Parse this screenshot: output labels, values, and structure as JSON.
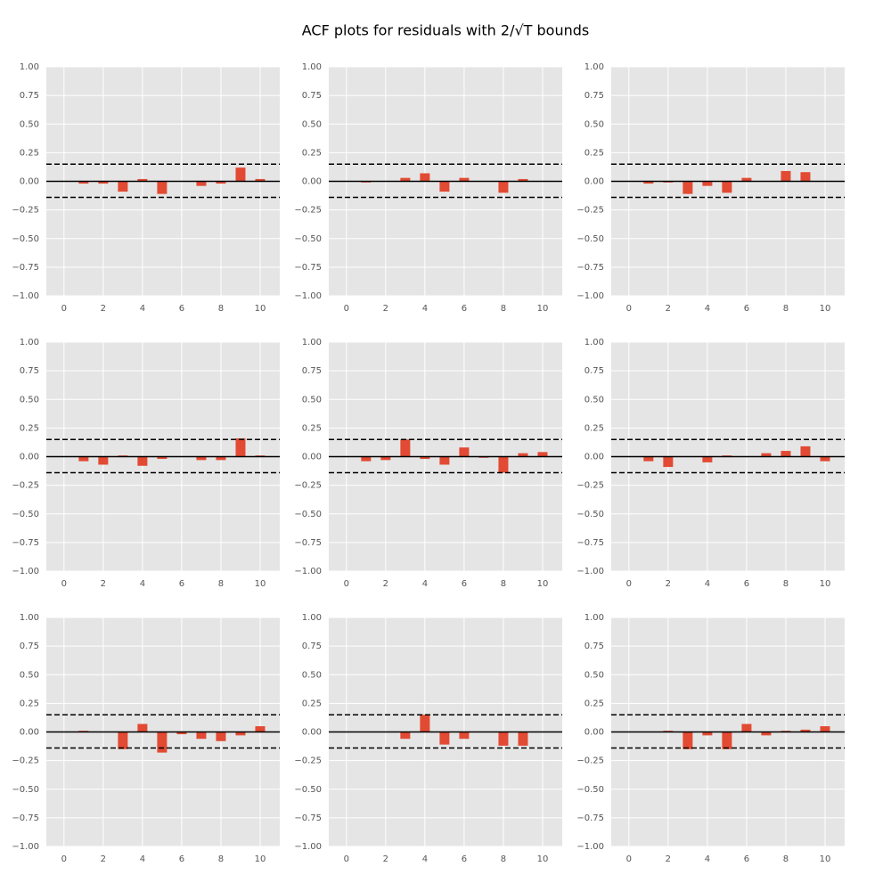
{
  "title": "ACF plots for residuals with 2/√T bounds",
  "chart_data": [
    {
      "type": "bar",
      "color": "#e24a33",
      "grid": true,
      "x": [
        1,
        2,
        3,
        4,
        5,
        6,
        7,
        8,
        9,
        10
      ],
      "values": [
        -0.02,
        -0.02,
        -0.09,
        0.02,
        -0.11,
        0,
        -0.04,
        -0.02,
        0.12,
        0.02
      ],
      "bounds": [
        0.15,
        -0.14
      ],
      "xlim": [
        -0.9,
        11
      ],
      "xticks": [
        0,
        2,
        4,
        6,
        8,
        10
      ],
      "ylim": [
        -1,
        1
      ],
      "yticks": [
        {
          "value": -1,
          "label": "−1.00"
        },
        {
          "value": -0.75,
          "label": "−0.75"
        },
        {
          "value": -0.5,
          "label": "−0.50"
        },
        {
          "value": -0.25,
          "label": "−0.25"
        },
        {
          "value": 0,
          "label": "0.00"
        },
        {
          "value": 0.25,
          "label": "0.25"
        },
        {
          "value": 0.5,
          "label": "0.50"
        },
        {
          "value": 0.75,
          "label": "0.75"
        },
        {
          "value": 1,
          "label": "1.00"
        }
      ]
    },
    {
      "type": "bar",
      "color": "#e24a33",
      "grid": true,
      "x": [
        1,
        2,
        3,
        4,
        5,
        6,
        7,
        8,
        9,
        10
      ],
      "values": [
        -0.01,
        0,
        0.03,
        0.07,
        -0.09,
        0.03,
        0,
        -0.1,
        0.02,
        0
      ],
      "bounds": [
        0.15,
        -0.14
      ],
      "xlim": [
        -0.9,
        11
      ],
      "xticks": [
        0,
        2,
        4,
        6,
        8,
        10
      ],
      "ylim": [
        -1,
        1
      ],
      "yticks": [
        {
          "value": -1,
          "label": "−1.00"
        },
        {
          "value": -0.75,
          "label": "−0.75"
        },
        {
          "value": -0.5,
          "label": "−0.50"
        },
        {
          "value": -0.25,
          "label": "−0.25"
        },
        {
          "value": 0,
          "label": "0.00"
        },
        {
          "value": 0.25,
          "label": "0.25"
        },
        {
          "value": 0.5,
          "label": "0.50"
        },
        {
          "value": 0.75,
          "label": "0.75"
        },
        {
          "value": 1,
          "label": "1.00"
        }
      ]
    },
    {
      "type": "bar",
      "color": "#e24a33",
      "grid": true,
      "x": [
        1,
        2,
        3,
        4,
        5,
        6,
        7,
        8,
        9,
        10
      ],
      "values": [
        -0.02,
        -0.01,
        -0.11,
        -0.04,
        -0.1,
        0.03,
        0,
        0.09,
        0.08,
        0
      ],
      "bounds": [
        0.15,
        -0.14
      ],
      "xlim": [
        -0.9,
        11
      ],
      "xticks": [
        0,
        2,
        4,
        6,
        8,
        10
      ],
      "ylim": [
        -1,
        1
      ],
      "yticks": [
        {
          "value": -1,
          "label": "−1.00"
        },
        {
          "value": -0.75,
          "label": "−0.75"
        },
        {
          "value": -0.5,
          "label": "−0.50"
        },
        {
          "value": -0.25,
          "label": "−0.25"
        },
        {
          "value": 0,
          "label": "0.00"
        },
        {
          "value": 0.25,
          "label": "0.25"
        },
        {
          "value": 0.5,
          "label": "0.50"
        },
        {
          "value": 0.75,
          "label": "0.75"
        },
        {
          "value": 1,
          "label": "1.00"
        }
      ]
    },
    {
      "type": "bar",
      "color": "#e24a33",
      "grid": true,
      "x": [
        1,
        2,
        3,
        4,
        5,
        6,
        7,
        8,
        9,
        10
      ],
      "values": [
        -0.04,
        -0.07,
        0.01,
        -0.08,
        -0.02,
        0,
        -0.03,
        -0.03,
        0.16,
        0.01
      ],
      "bounds": [
        0.15,
        -0.14
      ],
      "xlim": [
        -0.9,
        11
      ],
      "xticks": [
        0,
        2,
        4,
        6,
        8,
        10
      ],
      "ylim": [
        -1,
        1
      ],
      "yticks": [
        {
          "value": -1,
          "label": "−1.00"
        },
        {
          "value": -0.75,
          "label": "−0.75"
        },
        {
          "value": -0.5,
          "label": "−0.50"
        },
        {
          "value": -0.25,
          "label": "−0.25"
        },
        {
          "value": 0,
          "label": "0.00"
        },
        {
          "value": 0.25,
          "label": "0.25"
        },
        {
          "value": 0.5,
          "label": "0.50"
        },
        {
          "value": 0.75,
          "label": "0.75"
        },
        {
          "value": 1,
          "label": "1.00"
        }
      ]
    },
    {
      "type": "bar",
      "color": "#e24a33",
      "grid": true,
      "x": [
        1,
        2,
        3,
        4,
        5,
        6,
        7,
        8,
        9,
        10
      ],
      "values": [
        -0.04,
        -0.03,
        0.15,
        -0.02,
        -0.07,
        0.08,
        -0.01,
        -0.14,
        0.03,
        0.04
      ],
      "bounds": [
        0.15,
        -0.14
      ],
      "xlim": [
        -0.9,
        11
      ],
      "xticks": [
        0,
        2,
        4,
        6,
        8,
        10
      ],
      "ylim": [
        -1,
        1
      ],
      "yticks": [
        {
          "value": -1,
          "label": "−1.00"
        },
        {
          "value": -0.75,
          "label": "−0.75"
        },
        {
          "value": -0.5,
          "label": "−0.50"
        },
        {
          "value": -0.25,
          "label": "−0.25"
        },
        {
          "value": 0,
          "label": "0.00"
        },
        {
          "value": 0.25,
          "label": "0.25"
        },
        {
          "value": 0.5,
          "label": "0.50"
        },
        {
          "value": 0.75,
          "label": "0.75"
        },
        {
          "value": 1,
          "label": "1.00"
        }
      ]
    },
    {
      "type": "bar",
      "color": "#e24a33",
      "grid": true,
      "x": [
        1,
        2,
        3,
        4,
        5,
        6,
        7,
        8,
        9,
        10
      ],
      "values": [
        -0.04,
        -0.09,
        0,
        -0.05,
        0.01,
        0,
        0.03,
        0.05,
        0.09,
        -0.04
      ],
      "bounds": [
        0.15,
        -0.14
      ],
      "xlim": [
        -0.9,
        11
      ],
      "xticks": [
        0,
        2,
        4,
        6,
        8,
        10
      ],
      "ylim": [
        -1,
        1
      ],
      "yticks": [
        {
          "value": -1,
          "label": "−1.00"
        },
        {
          "value": -0.75,
          "label": "−0.75"
        },
        {
          "value": -0.5,
          "label": "−0.50"
        },
        {
          "value": -0.25,
          "label": "−0.25"
        },
        {
          "value": 0,
          "label": "0.00"
        },
        {
          "value": 0.25,
          "label": "0.25"
        },
        {
          "value": 0.5,
          "label": "0.50"
        },
        {
          "value": 0.75,
          "label": "0.75"
        },
        {
          "value": 1,
          "label": "1.00"
        }
      ]
    },
    {
      "type": "bar",
      "color": "#e24a33",
      "grid": true,
      "x": [
        1,
        2,
        3,
        4,
        5,
        6,
        7,
        8,
        9,
        10
      ],
      "values": [
        0.01,
        0,
        -0.15,
        0.07,
        -0.18,
        -0.02,
        -0.06,
        -0.08,
        -0.03,
        0.05
      ],
      "bounds": [
        0.15,
        -0.14
      ],
      "xlim": [
        -0.9,
        11
      ],
      "xticks": [
        0,
        2,
        4,
        6,
        8,
        10
      ],
      "ylim": [
        -1,
        1
      ],
      "yticks": [
        {
          "value": -1,
          "label": "−1.00"
        },
        {
          "value": -0.75,
          "label": "−0.75"
        },
        {
          "value": -0.5,
          "label": "−0.50"
        },
        {
          "value": -0.25,
          "label": "−0.25"
        },
        {
          "value": 0,
          "label": "0.00"
        },
        {
          "value": 0.25,
          "label": "0.25"
        },
        {
          "value": 0.5,
          "label": "0.50"
        },
        {
          "value": 0.75,
          "label": "0.75"
        },
        {
          "value": 1,
          "label": "1.00"
        }
      ]
    },
    {
      "type": "bar",
      "color": "#e24a33",
      "grid": true,
      "x": [
        1,
        2,
        3,
        4,
        5,
        6,
        7,
        8,
        9,
        10
      ],
      "values": [
        0,
        0,
        -0.06,
        0.15,
        -0.11,
        -0.06,
        0,
        -0.12,
        -0.12,
        0
      ],
      "bounds": [
        0.15,
        -0.14
      ],
      "xlim": [
        -0.9,
        11
      ],
      "xticks": [
        0,
        2,
        4,
        6,
        8,
        10
      ],
      "ylim": [
        -1,
        1
      ],
      "yticks": [
        {
          "value": -1,
          "label": "−1.00"
        },
        {
          "value": -0.75,
          "label": "−0.75"
        },
        {
          "value": -0.5,
          "label": "−0.50"
        },
        {
          "value": -0.25,
          "label": "−0.25"
        },
        {
          "value": 0,
          "label": "0.00"
        },
        {
          "value": 0.25,
          "label": "0.25"
        },
        {
          "value": 0.5,
          "label": "0.50"
        },
        {
          "value": 0.75,
          "label": "0.75"
        },
        {
          "value": 1,
          "label": "1.00"
        }
      ]
    },
    {
      "type": "bar",
      "color": "#e24a33",
      "grid": true,
      "x": [
        1,
        2,
        3,
        4,
        5,
        6,
        7,
        8,
        9,
        10
      ],
      "values": [
        0,
        0.01,
        -0.15,
        -0.03,
        -0.15,
        0.07,
        -0.03,
        0.01,
        0.02,
        0.05
      ],
      "bounds": [
        0.15,
        -0.14
      ],
      "xlim": [
        -0.9,
        11
      ],
      "xticks": [
        0,
        2,
        4,
        6,
        8,
        10
      ],
      "ylim": [
        -1,
        1
      ],
      "yticks": [
        {
          "value": -1,
          "label": "−1.00"
        },
        {
          "value": -0.75,
          "label": "−0.75"
        },
        {
          "value": -0.5,
          "label": "−0.50"
        },
        {
          "value": -0.25,
          "label": "−0.25"
        },
        {
          "value": 0,
          "label": "0.00"
        },
        {
          "value": 0.25,
          "label": "0.25"
        },
        {
          "value": 0.5,
          "label": "0.50"
        },
        {
          "value": 0.75,
          "label": "0.75"
        },
        {
          "value": 1,
          "label": "1.00"
        }
      ]
    }
  ]
}
